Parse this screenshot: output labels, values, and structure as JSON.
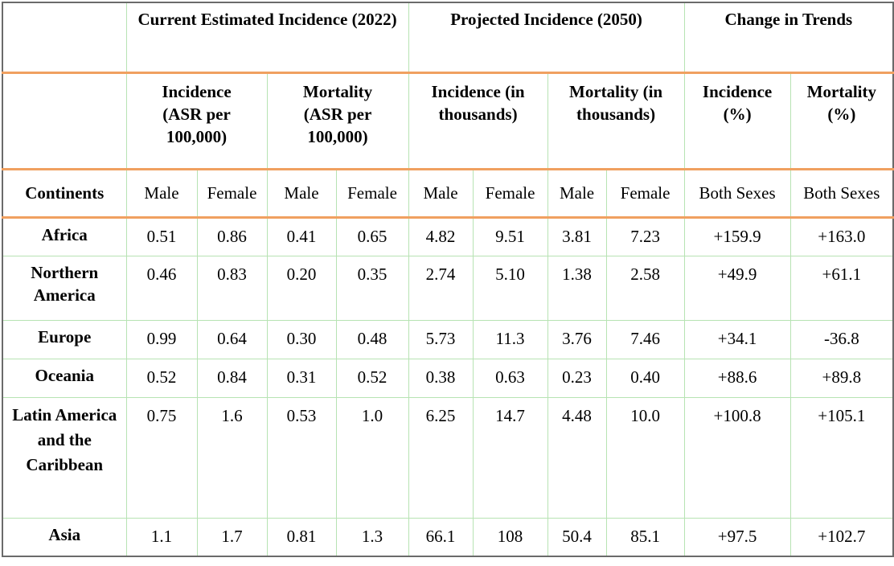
{
  "header": {
    "group1": "Current Estimated Incidence (2022)",
    "group2": "Projected Incidence (2050)",
    "group3": "Change in Trends",
    "metric1": "Incidence (ASR per 100,000)",
    "metric2": "Mortality (ASR per 100,000)",
    "metric3": "Incidence (in thousands)",
    "metric4": "Mortality (in thousands)",
    "metric5": "Incidence (%)",
    "metric6": "Mortality (%)",
    "continents": "Continents",
    "male": "Male",
    "female": "Female",
    "both": "Both Sexes"
  },
  "rows": [
    {
      "continent": "Africa",
      "v": [
        "0.51",
        "0.86",
        "0.41",
        "0.65",
        "4.82",
        "9.51",
        "3.81",
        "7.23",
        "+159.9",
        "+163.0"
      ]
    },
    {
      "continent": "Northern America",
      "v": [
        "0.46",
        "0.83",
        "0.20",
        "0.35",
        "2.74",
        "5.10",
        "1.38",
        "2.58",
        "+49.9",
        "+61.1"
      ]
    },
    {
      "continent": "Europe",
      "v": [
        "0.99",
        "0.64",
        "0.30",
        "0.48",
        "5.73",
        "11.3",
        "3.76",
        "7.46",
        "+34.1",
        "-36.8"
      ]
    },
    {
      "continent": "Oceania",
      "v": [
        "0.52",
        "0.84",
        "0.31",
        "0.52",
        "0.38",
        "0.63",
        "0.23",
        "0.40",
        "+88.6",
        "+89.8"
      ]
    },
    {
      "continent": "Latin America and the Caribbean",
      "v": [
        "0.75",
        "1.6",
        "0.53",
        "1.0",
        "6.25",
        "14.7",
        "4.48",
        "10.0",
        "+100.8",
        "+105.1"
      ]
    },
    {
      "continent": "Asia",
      "v": [
        "1.1",
        "1.7",
        "0.81",
        "1.3",
        "66.1",
        "108",
        "50.4",
        "85.1",
        "+97.5",
        "+102.7"
      ]
    }
  ]
}
